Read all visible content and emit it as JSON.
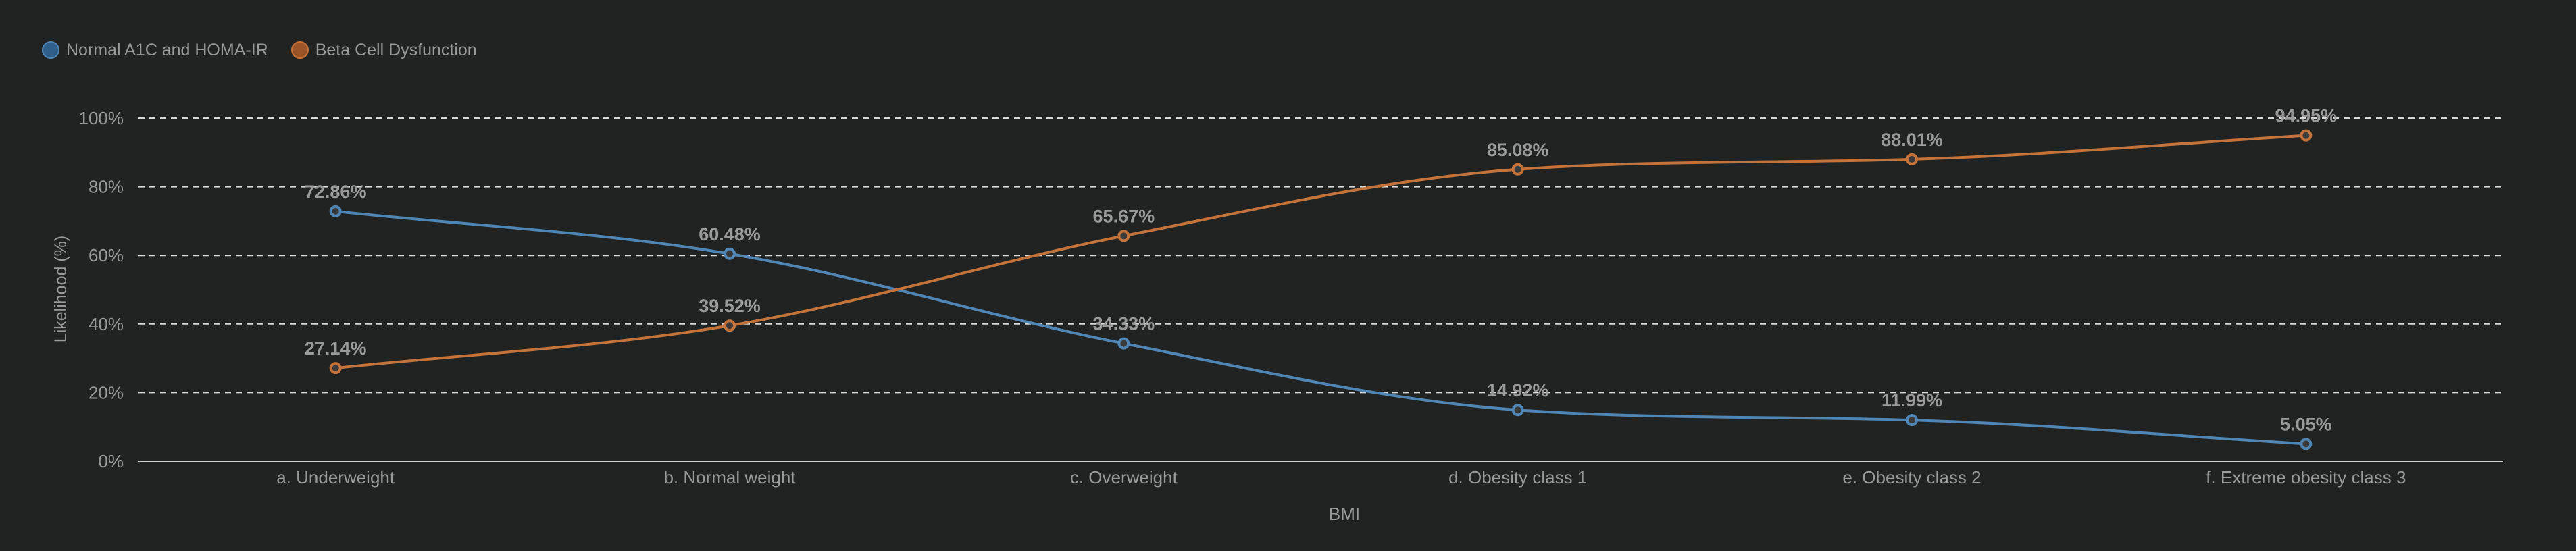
{
  "chart_data": {
    "type": "line",
    "categories": [
      "a. Underweight",
      "b. Normal weight",
      "c. Overweight",
      "d. Obesity class 1",
      "e. Obesity class 2",
      "f. Extreme obesity class 3"
    ],
    "series": [
      {
        "name": "Normal A1C and HOMA-IR",
        "color": "#4f86b5",
        "values": [
          72.86,
          60.48,
          34.33,
          14.92,
          11.99,
          5.05
        ],
        "labels": [
          "72.86%",
          "60.48%",
          "34.33%",
          "14.92%",
          "11.99%",
          "5.05%"
        ]
      },
      {
        "name": "Beta Cell Dysfunction",
        "color": "#c4733a",
        "values": [
          27.14,
          39.52,
          65.67,
          85.08,
          88.01,
          94.95
        ],
        "labels": [
          "27.14%",
          "39.52%",
          "65.67%",
          "85.08%",
          "88.01%",
          "94.95%"
        ]
      }
    ],
    "xlabel": "BMI",
    "ylabel": "Likelihood (%)",
    "ylim": [
      0,
      100
    ],
    "yticks": [
      "0%",
      "20%",
      "40%",
      "60%",
      "80%",
      "100%"
    ],
    "grid": true,
    "curve": "smooth",
    "legend_position": "top-left"
  }
}
